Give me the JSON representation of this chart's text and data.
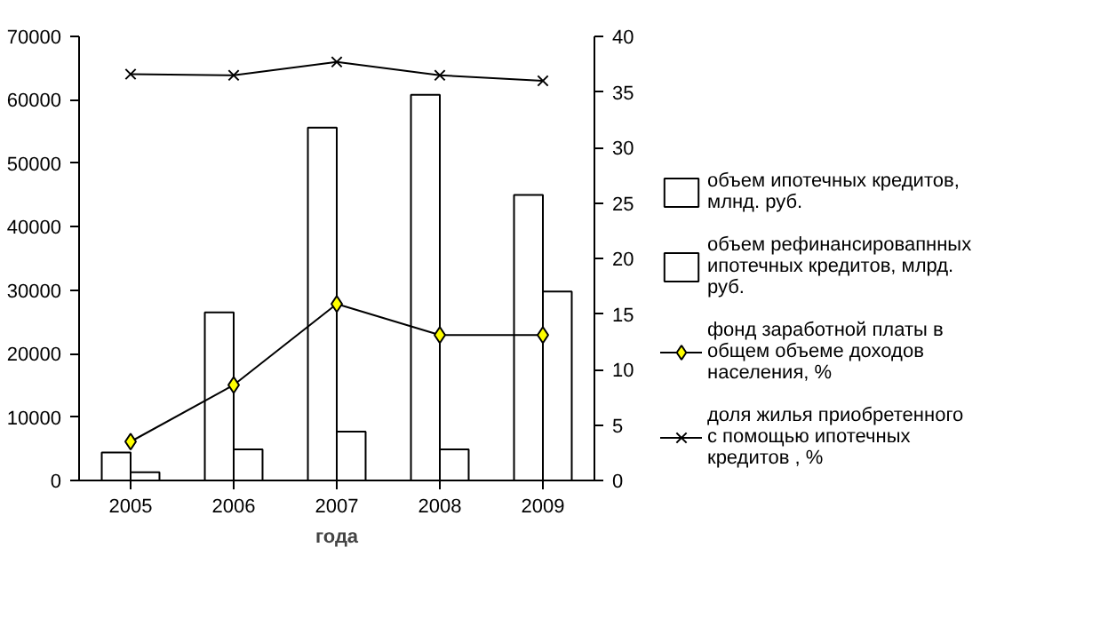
{
  "chart_data": {
    "type": "bar",
    "xlabel": "года",
    "categories": [
      "2005",
      "2006",
      "2007",
      "2008",
      "2009"
    ],
    "ylim": [
      0,
      70000
    ],
    "yticks": [
      0,
      10000,
      20000,
      30000,
      40000,
      50000,
      60000,
      70000
    ],
    "y2lim": [
      0,
      40
    ],
    "y2ticks": [
      0,
      5,
      10,
      15,
      20,
      25,
      30,
      35,
      40
    ],
    "grid": false,
    "legend": "right",
    "series": [
      {
        "name": "объем ипотечных кредитов, млнд. руб.",
        "color": "#ffffff",
        "values": [
          4400,
          26500,
          55600,
          60800,
          45000
        ]
      },
      {
        "name": "объем рефинансировапнных ипотечных кредитов, млрд. руб.",
        "color": "#ffffff",
        "values": [
          1300,
          4900,
          7700,
          4900,
          29800
        ]
      },
      {
        "name": "фонд заработной платы в общем объеме доходов населения, %",
        "type": "line",
        "axis": "y2",
        "marker": "diamond",
        "color": "#ffff00",
        "values": [
          3.5,
          8.6,
          15.9,
          13.1,
          13.1
        ]
      },
      {
        "name": "доля жилья приобретенного с помощью ипотечных кредитов , %",
        "type": "line",
        "axis": "y2",
        "marker": "cross",
        "color": "#000000",
        "values": [
          36.6,
          36.5,
          37.7,
          36.5,
          36.0
        ]
      }
    ]
  }
}
